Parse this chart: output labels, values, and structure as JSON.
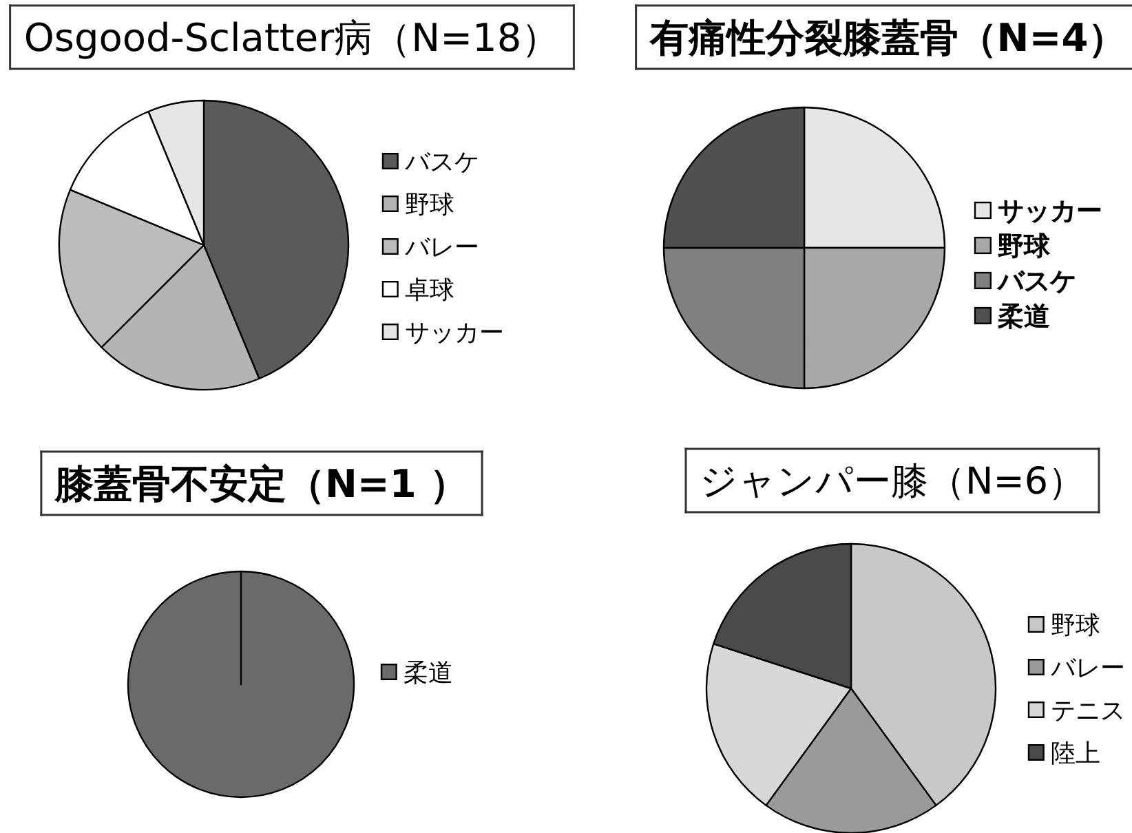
{
  "chart_data": [
    {
      "type": "pie",
      "title": "Osgood-Sclatter病（N=18）",
      "categories": [
        "バスケ",
        "野球",
        "バレー",
        "卓球",
        "サッカー"
      ],
      "values": [
        43.75,
        18.75,
        18.75,
        12.5,
        6.25
      ],
      "colors": [
        "#5a5a5a",
        "#b4b4b4",
        "#bcbcbc",
        "#ffffff",
        "#e6e6e6"
      ],
      "legend": "right"
    },
    {
      "type": "pie",
      "title": "有痛性分裂膝蓋骨（N=4）",
      "categories": [
        "サッカー",
        "野球",
        "バスケ",
        "柔道"
      ],
      "values": [
        25,
        25,
        25,
        25
      ],
      "colors": [
        "#e6e6e6",
        "#a8a8a8",
        "#808080",
        "#505050"
      ],
      "legend": "right"
    },
    {
      "type": "pie",
      "title": "膝蓋骨不安定（N=1 ）",
      "categories": [
        "柔道"
      ],
      "values": [
        100
      ],
      "colors": [
        "#6a6a6a"
      ],
      "legend": "right"
    },
    {
      "type": "pie",
      "title": "ジャンパー膝（N=6）",
      "categories": [
        "野球",
        "バレー",
        "テニス",
        "陸上"
      ],
      "values": [
        40,
        20,
        20,
        20
      ],
      "colors": [
        "#c8c8c8",
        "#9a9a9a",
        "#d8d8d8",
        "#4a4a4a"
      ],
      "legend": "right"
    }
  ]
}
